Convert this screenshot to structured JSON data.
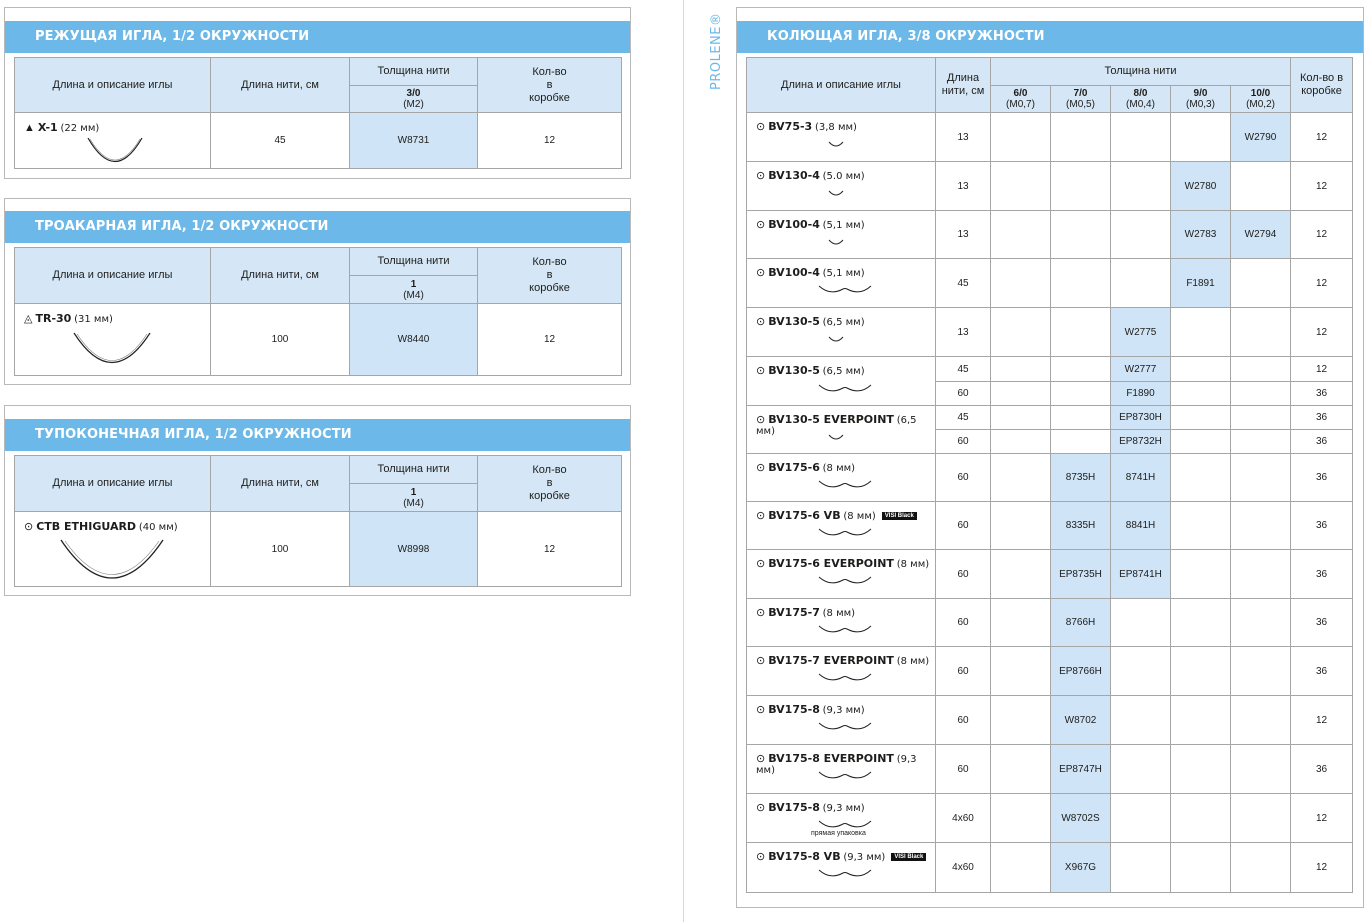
{
  "brand_label": "PROLENE®",
  "headers": {
    "desc": "Длина и описание иглы",
    "length": "Длина нити, см",
    "length_r": "Длина нити, см",
    "thickness": "Толщина нити",
    "qty": "Кол-во в коробке"
  },
  "colors": {
    "band": "#6cb8e8",
    "header": "#d5e7f6",
    "highlight": "#cfe4f7"
  },
  "left_sections": [
    {
      "title": "РЕЖУЩАЯ ИГЛА, 1/2 ОКРУЖНОСТИ",
      "size_label": "3/0",
      "size_sub": "(M2)",
      "needle_icon": "triangle-icon",
      "needle_symbol": "▲",
      "name": "X-1",
      "size": "(22 мм)",
      "length": "45",
      "code": "W8731",
      "qty": "12"
    },
    {
      "title": "ТРОАКАРНАЯ ИГЛА, 1/2 ОКРУЖНОСТИ",
      "size_label": "1",
      "size_sub": "(M4)",
      "needle_icon": "trocar-icon",
      "needle_symbol": "◬",
      "name": "TR-30",
      "size": "(31 мм)",
      "length": "100",
      "code": "W8440",
      "qty": "12"
    },
    {
      "title": "ТУПОКОНЕЧНАЯ ИГЛА, 1/2 ОКРУЖНОСТИ",
      "size_label": "1",
      "size_sub": "(M4)",
      "needle_icon": "blunt-point-icon",
      "needle_symbol": "⊙",
      "name": "CTB ETHIGUARD",
      "size": "(40 мм)",
      "length": "100",
      "code": "W8998",
      "qty": "12"
    }
  ],
  "right_section": {
    "title": "КОЛЮЩАЯ ИГЛА, 3/8 ОКРУЖНОСТИ",
    "sizes": [
      {
        "label": "6/0",
        "sub": "(M0,7)"
      },
      {
        "label": "7/0",
        "sub": "(M0,5)"
      },
      {
        "label": "8/0",
        "sub": "(M0,4)"
      },
      {
        "label": "9/0",
        "sub": "(M0,3)"
      },
      {
        "label": "10/0",
        "sub": "(M0,2)"
      }
    ],
    "needle_symbol": "⊙",
    "badge_text": "VISI Black",
    "rows": [
      {
        "name": "BV75-3",
        "size": "(3,8 мм)",
        "double": false,
        "badge": false,
        "note": "",
        "lines": [
          {
            "len": "13",
            "codes": [
              "",
              "",
              "",
              "",
              "W2790"
            ],
            "qty": "12"
          }
        ]
      },
      {
        "name": "BV130-4",
        "size": "(5.0 мм)",
        "double": false,
        "badge": false,
        "note": "",
        "lines": [
          {
            "len": "13",
            "codes": [
              "",
              "",
              "",
              "W2780",
              ""
            ],
            "qty": "12"
          }
        ]
      },
      {
        "name": "BV100-4",
        "size": "(5,1 мм)",
        "double": false,
        "badge": false,
        "note": "",
        "lines": [
          {
            "len": "13",
            "codes": [
              "",
              "",
              "",
              "W2783",
              "W2794"
            ],
            "qty": "12"
          }
        ]
      },
      {
        "name": "BV100-4",
        "size": "(5,1 мм)",
        "double": true,
        "badge": false,
        "note": "",
        "lines": [
          {
            "len": "45",
            "codes": [
              "",
              "",
              "",
              "F1891",
              ""
            ],
            "qty": "12"
          }
        ]
      },
      {
        "name": "BV130-5",
        "size": "(6,5 мм)",
        "double": false,
        "badge": false,
        "note": "",
        "lines": [
          {
            "len": "13",
            "codes": [
              "",
              "",
              "W2775",
              "",
              ""
            ],
            "qty": "12"
          }
        ]
      },
      {
        "name": "BV130-5",
        "size": "(6,5 мм)",
        "double": true,
        "badge": false,
        "note": "",
        "lines": [
          {
            "len": "45",
            "codes": [
              "",
              "",
              "W2777",
              "",
              ""
            ],
            "qty": "12"
          },
          {
            "len": "60",
            "codes": [
              "",
              "",
              "F1890",
              "",
              ""
            ],
            "qty": "36"
          }
        ]
      },
      {
        "name": "BV130-5 EVERPOINT",
        "size": "(6,5 мм)",
        "double": false,
        "badge": false,
        "note": "",
        "lines": [
          {
            "len": "45",
            "codes": [
              "",
              "",
              "EP8730H",
              "",
              ""
            ],
            "qty": "36"
          },
          {
            "len": "60",
            "codes": [
              "",
              "",
              "EP8732H",
              "",
              ""
            ],
            "qty": "36"
          }
        ]
      },
      {
        "name": "BV175-6",
        "size": "(8 мм)",
        "double": true,
        "badge": false,
        "note": "",
        "lines": [
          {
            "len": "60",
            "codes": [
              "",
              "8735H",
              "8741H",
              "",
              ""
            ],
            "qty": "36"
          }
        ]
      },
      {
        "name": "BV175-6 VB",
        "size": "(8 мм)",
        "double": true,
        "badge": true,
        "note": "",
        "lines": [
          {
            "len": "60",
            "codes": [
              "",
              "8335H",
              "8841H",
              "",
              ""
            ],
            "qty": "36"
          }
        ]
      },
      {
        "name": "BV175-6 EVERPOINT",
        "size": "(8 мм)",
        "double": true,
        "badge": false,
        "note": "",
        "lines": [
          {
            "len": "60",
            "codes": [
              "",
              "EP8735H",
              "EP8741H",
              "",
              ""
            ],
            "qty": "36"
          }
        ]
      },
      {
        "name": "BV175-7",
        "size": "(8 мм)",
        "double": true,
        "badge": false,
        "note": "",
        "lines": [
          {
            "len": "60",
            "codes": [
              "",
              "8766H",
              "",
              "",
              ""
            ],
            "qty": "36"
          }
        ]
      },
      {
        "name": "BV175-7 EVERPOINT",
        "size": "(8 мм)",
        "double": true,
        "badge": false,
        "note": "",
        "lines": [
          {
            "len": "60",
            "codes": [
              "",
              "EP8766H",
              "",
              "",
              ""
            ],
            "qty": "36"
          }
        ]
      },
      {
        "name": "BV175-8",
        "size": "(9,3 мм)",
        "double": true,
        "badge": false,
        "note": "",
        "lines": [
          {
            "len": "60",
            "codes": [
              "",
              "W8702",
              "",
              "",
              ""
            ],
            "qty": "12"
          }
        ]
      },
      {
        "name": "BV175-8 EVERPOINT",
        "size": "(9,3 мм)",
        "double": true,
        "badge": false,
        "note": "",
        "lines": [
          {
            "len": "60",
            "codes": [
              "",
              "EP8747H",
              "",
              "",
              ""
            ],
            "qty": "36"
          }
        ]
      },
      {
        "name": "BV175-8",
        "size": "(9,3 мм)",
        "double": true,
        "badge": false,
        "note": "прямая упаковка",
        "lines": [
          {
            "len": "4x60",
            "codes": [
              "",
              "W8702S",
              "",
              "",
              ""
            ],
            "qty": "12"
          }
        ]
      },
      {
        "name": "BV175-8 VB",
        "size": "(9,3 мм)",
        "double": true,
        "badge": true,
        "note": "",
        "lines": [
          {
            "len": "4x60",
            "codes": [
              "",
              "X967G",
              "",
              "",
              ""
            ],
            "qty": "12"
          }
        ]
      }
    ]
  }
}
